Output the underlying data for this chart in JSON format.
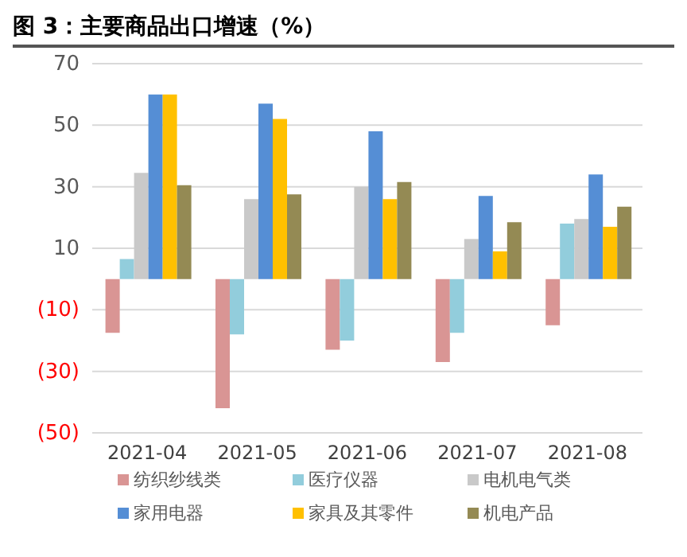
{
  "chart_data": {
    "type": "bar",
    "title": "图 3：主要商品出口增速（%）",
    "categories": [
      "2021-04",
      "2021-05",
      "2021-06",
      "2021-07",
      "2021-08"
    ],
    "series": [
      {
        "name": "纺织纱线类",
        "color": "#d99594",
        "values": [
          -17.5,
          -42,
          -23,
          -27,
          -15
        ]
      },
      {
        "name": "医疗仪器",
        "color": "#92cddc",
        "values": [
          6.5,
          -18,
          -20,
          -17.5,
          18
        ]
      },
      {
        "name": "电机电气类",
        "color": "#c9c9c9",
        "values": [
          34.5,
          26,
          30,
          13,
          19.5
        ]
      },
      {
        "name": "家用电器",
        "color": "#558ed5",
        "values": [
          60,
          57,
          48,
          27,
          34
        ]
      },
      {
        "name": "家具及其零件",
        "color": "#ffc000",
        "values": [
          60,
          52,
          26,
          9,
          17
        ]
      },
      {
        "name": "机电产品",
        "color": "#948a54",
        "values": [
          30.5,
          27.5,
          31.5,
          18.5,
          23.5
        ]
      }
    ],
    "ylim": [
      -50,
      70
    ],
    "yticks": [
      {
        "value": -50,
        "label": "(50)"
      },
      {
        "value": -30,
        "label": "(30)"
      },
      {
        "value": -10,
        "label": "(10)"
      },
      10,
      30,
      50,
      70
    ],
    "grid": "y",
    "legend": "bottom"
  }
}
